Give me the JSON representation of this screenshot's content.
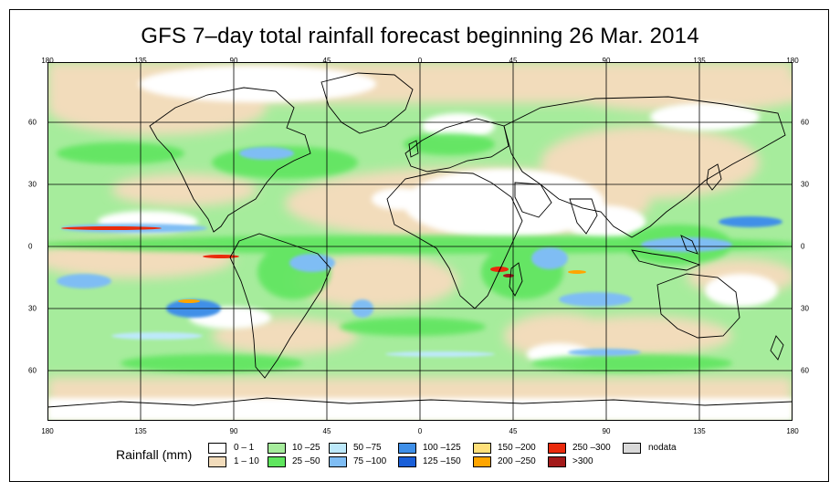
{
  "title": "GFS 7–day total rainfall forecast beginning 26 Mar. 2014",
  "axes": {
    "longitude_labels": [
      "180",
      "135",
      "90",
      "45",
      "0",
      "45",
      "90",
      "135",
      "180"
    ],
    "latitude_labels": [
      "60",
      "30",
      "0",
      "30",
      "60"
    ]
  },
  "legend": {
    "title": "Rainfall (mm)",
    "items": [
      {
        "label": "0 – 1",
        "color": "#ffffff"
      },
      {
        "label": "1 – 10",
        "color": "#f2dcbb"
      },
      {
        "label": "10 –25",
        "color": "#a6ec9c"
      },
      {
        "label": "25 –50",
        "color": "#5fe55e"
      },
      {
        "label": "50 –75",
        "color": "#bde9fb"
      },
      {
        "label": "75 –100",
        "color": "#7fbdf4"
      },
      {
        "label": "100 –125",
        "color": "#3f8fe8"
      },
      {
        "label": "125 –150",
        "color": "#1a5fd8"
      },
      {
        "label": "150 –200",
        "color": "#ffe07a"
      },
      {
        "label": "200 –250",
        "color": "#ffa500"
      },
      {
        "label": "250 –300",
        "color": "#ea2a0c"
      },
      {
        "label": ">300",
        "color": "#a31a1a"
      },
      {
        "label": "nodata",
        "color": "#d9d9d9"
      }
    ]
  }
}
